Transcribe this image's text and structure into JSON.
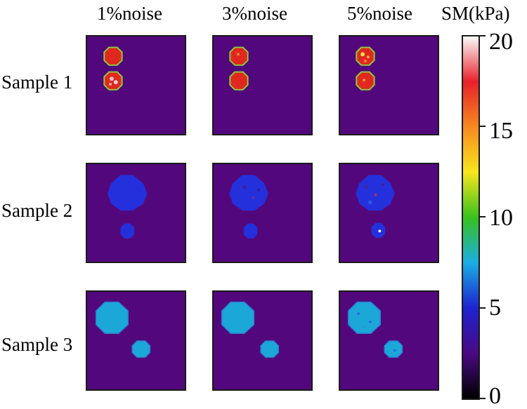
{
  "columns": [
    "1%noise",
    "3%noise",
    "5%noise"
  ],
  "rows": [
    "Sample 1",
    "Sample 2",
    "Sample 3"
  ],
  "colorbar": {
    "title": "SM(kPa)",
    "ticks": [
      "20",
      "15",
      "10",
      "5",
      "0"
    ],
    "stops": [
      "#fbfbfb",
      "#e8202a",
      "#f58a1f",
      "#f8e61d",
      "#38c11d",
      "#1aaee3",
      "#1d22d0",
      "#4a0a84",
      "#000000"
    ]
  },
  "colors": {
    "background": "#52087c",
    "sample1_inclusion": "#e1281f",
    "sample1_rim": "#8cd03a",
    "sample2_inclusion": "#2430dc",
    "sample3_inclusion": "#1ba8d8"
  }
}
